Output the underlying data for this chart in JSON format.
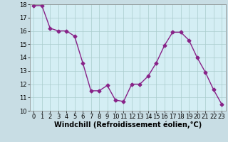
{
  "x": [
    0,
    1,
    2,
    3,
    4,
    5,
    6,
    7,
    8,
    9,
    10,
    11,
    12,
    13,
    14,
    15,
    16,
    17,
    18,
    19,
    20,
    21,
    22,
    23
  ],
  "y": [
    17.9,
    17.9,
    16.2,
    16.0,
    16.0,
    15.6,
    13.6,
    11.5,
    11.5,
    11.9,
    10.8,
    10.7,
    12.0,
    12.0,
    12.6,
    13.6,
    14.9,
    15.9,
    15.9,
    15.3,
    14.0,
    12.9,
    11.6,
    10.5
  ],
  "line_color": "#882288",
  "marker": "D",
  "markersize": 2.5,
  "linewidth": 1.0,
  "xlabel": "Windchill (Refroidissement éolien,°C)",
  "xlabel_fontsize": 7,
  "tick_fontsize": 6,
  "xlim": [
    -0.5,
    23.5
  ],
  "ylim": [
    10,
    18
  ],
  "yticks": [
    10,
    11,
    12,
    13,
    14,
    15,
    16,
    17,
    18
  ],
  "xticks": [
    0,
    1,
    2,
    3,
    4,
    5,
    6,
    7,
    8,
    9,
    10,
    11,
    12,
    13,
    14,
    15,
    16,
    17,
    18,
    19,
    20,
    21,
    22,
    23
  ],
  "background_color": "#d4eef4",
  "grid_color": "#aacccc",
  "fig_bg": "#c8dde4"
}
